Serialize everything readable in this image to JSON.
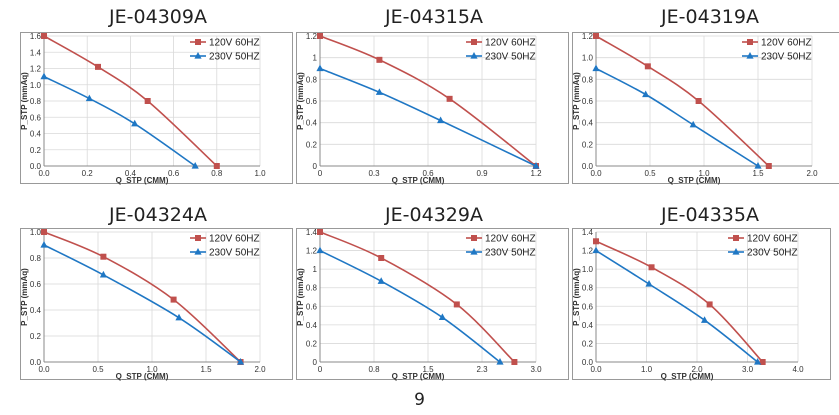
{
  "page_number": "9",
  "colors": {
    "s1": "#c0504d",
    "s2": "#1f77c4"
  },
  "legend": {
    "s1": "120V 60HZ",
    "s2": "230V 50HZ"
  },
  "axis_labels": {
    "x": "Q_STP (CMM)",
    "y": "P_STP (mmAq)"
  },
  "chart_data": [
    {
      "type": "line",
      "title": "JE-04309A",
      "xlim": [
        0,
        1.0
      ],
      "xticks": [
        "0.0",
        "0.2",
        "0.4",
        "0.6",
        "0.8",
        "1.0"
      ],
      "ylim": [
        0,
        1.6
      ],
      "yticks": [
        "0.0",
        "0.2",
        "0.4",
        "0.6",
        "0.8",
        "1.0",
        "1.2",
        "1.4",
        "1.6"
      ],
      "series": [
        {
          "name": "120V 60HZ",
          "x": [
            0,
            0.25,
            0.48,
            0.8
          ],
          "y": [
            1.6,
            1.22,
            0.8,
            0
          ]
        },
        {
          "name": "230V 50HZ",
          "x": [
            0,
            0.21,
            0.42,
            0.7
          ],
          "y": [
            1.1,
            0.83,
            0.52,
            0
          ]
        }
      ]
    },
    {
      "type": "line",
      "title": "JE-04315A",
      "xlim": [
        0,
        1.2
      ],
      "xticks": [
        "0",
        "0.3",
        "0.6",
        "0.9",
        "1.2"
      ],
      "ylim": [
        0,
        1.2
      ],
      "yticks": [
        "0",
        "0.2",
        "0.4",
        "0.6",
        "0.8",
        "1",
        "1.2"
      ],
      "series": [
        {
          "name": "120V 60HZ",
          "x": [
            0,
            0.33,
            0.72,
            1.2
          ],
          "y": [
            1.2,
            0.98,
            0.62,
            0
          ]
        },
        {
          "name": "230V 50HZ",
          "x": [
            0,
            0.33,
            0.67,
            1.2
          ],
          "y": [
            0.9,
            0.68,
            0.42,
            0
          ]
        }
      ]
    },
    {
      "type": "line",
      "title": "JE-04319A",
      "xlim": [
        0,
        2.0
      ],
      "xticks": [
        "0.0",
        "0.5",
        "1.0",
        "1.5",
        "2.0"
      ],
      "ylim": [
        0,
        1.2
      ],
      "yticks": [
        "0.0",
        "0.2",
        "0.4",
        "0.6",
        "0.8",
        "1.0",
        "1.2"
      ],
      "series": [
        {
          "name": "120V 60HZ",
          "x": [
            0,
            0.48,
            0.95,
            1.6
          ],
          "y": [
            1.2,
            0.92,
            0.6,
            0
          ]
        },
        {
          "name": "230V 50HZ",
          "x": [
            0,
            0.46,
            0.9,
            1.5
          ],
          "y": [
            0.9,
            0.66,
            0.38,
            0
          ]
        }
      ]
    },
    {
      "type": "line",
      "title": "JE-04324A",
      "xlim": [
        0,
        2.0
      ],
      "xticks": [
        "0.0",
        "0.5",
        "1.0",
        "1.5",
        "2.0"
      ],
      "ylim": [
        0,
        1.0
      ],
      "yticks": [
        "0.0",
        "0.2",
        "0.4",
        "0.6",
        "0.8",
        "1.0"
      ],
      "series": [
        {
          "name": "120V 60HZ",
          "x": [
            0,
            0.55,
            1.2,
            1.82
          ],
          "y": [
            1.0,
            0.81,
            0.48,
            0
          ]
        },
        {
          "name": "230V 50HZ",
          "x": [
            0,
            0.55,
            1.25,
            1.82
          ],
          "y": [
            0.9,
            0.67,
            0.34,
            0
          ]
        }
      ]
    },
    {
      "type": "line",
      "title": "JE-04329A",
      "xlim": [
        0,
        3.0
      ],
      "xticks": [
        "0",
        "0.8",
        "1.5",
        "2.3",
        "3.0"
      ],
      "ylim": [
        0,
        1.4
      ],
      "yticks": [
        "0",
        "0.2",
        "0.4",
        "0.6",
        "0.8",
        "1",
        "1.2",
        "1.4"
      ],
      "series": [
        {
          "name": "120V 60HZ",
          "x": [
            0,
            0.85,
            1.9,
            2.7
          ],
          "y": [
            1.4,
            1.12,
            0.62,
            0
          ]
        },
        {
          "name": "230V 50HZ",
          "x": [
            0,
            0.85,
            1.7,
            2.5
          ],
          "y": [
            1.2,
            0.87,
            0.48,
            0
          ]
        }
      ]
    },
    {
      "type": "line",
      "title": "JE-04335A",
      "xlim": [
        0,
        4.0
      ],
      "xticks": [
        "0.0",
        "1.0",
        "2.0",
        "3.0",
        "4.0"
      ],
      "ylim": [
        0,
        1.4
      ],
      "yticks": [
        "0.0",
        "0.2",
        "0.4",
        "0.6",
        "0.8",
        "1.0",
        "1.2",
        "1.4"
      ],
      "series": [
        {
          "name": "120V 60HZ",
          "x": [
            0,
            1.1,
            2.25,
            3.3
          ],
          "y": [
            1.3,
            1.02,
            0.62,
            0
          ]
        },
        {
          "name": "230V 50HZ",
          "x": [
            0,
            1.05,
            2.15,
            3.2
          ],
          "y": [
            1.2,
            0.84,
            0.45,
            0
          ]
        }
      ]
    }
  ]
}
